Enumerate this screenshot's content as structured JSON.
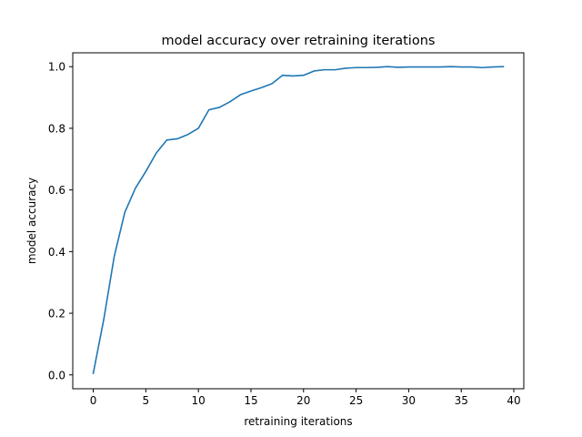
{
  "chart_data": {
    "type": "line",
    "title": "model accuracy over retraining iterations",
    "xlabel": "retraining iterations",
    "ylabel": "model accuracy",
    "xlim": [
      -1.95,
      40.95
    ],
    "ylim": [
      -0.045,
      1.045
    ],
    "xticks": [
      0,
      5,
      10,
      15,
      20,
      25,
      30,
      35,
      40
    ],
    "xtick_labels": [
      "0",
      "5",
      "10",
      "15",
      "20",
      "25",
      "30",
      "35",
      "40"
    ],
    "yticks": [
      0.0,
      0.2,
      0.4,
      0.6,
      0.8,
      1.0
    ],
    "ytick_labels": [
      "0.0",
      "0.2",
      "0.4",
      "0.6",
      "0.8",
      "1.0"
    ],
    "grid": false,
    "series": [
      {
        "color": "#1f77b4",
        "x": [
          0,
          1,
          2,
          3,
          4,
          5,
          6,
          7,
          8,
          9,
          10,
          11,
          12,
          13,
          14,
          15,
          16,
          17,
          18,
          19,
          20,
          21,
          22,
          23,
          24,
          25,
          26,
          27,
          28,
          29,
          30,
          31,
          32,
          33,
          34,
          35,
          36,
          37,
          38,
          39
        ],
        "y": [
          0.005,
          0.18,
          0.385,
          0.527,
          0.605,
          0.66,
          0.72,
          0.762,
          0.766,
          0.78,
          0.8,
          0.86,
          0.868,
          0.886,
          0.909,
          0.921,
          0.932,
          0.945,
          0.972,
          0.97,
          0.972,
          0.986,
          0.99,
          0.99,
          0.995,
          0.997,
          0.997,
          0.998,
          1.0,
          0.998,
          0.999,
          0.999,
          0.999,
          0.999,
          1.0,
          0.999,
          0.999,
          0.997,
          0.999,
          1.0
        ]
      }
    ]
  }
}
